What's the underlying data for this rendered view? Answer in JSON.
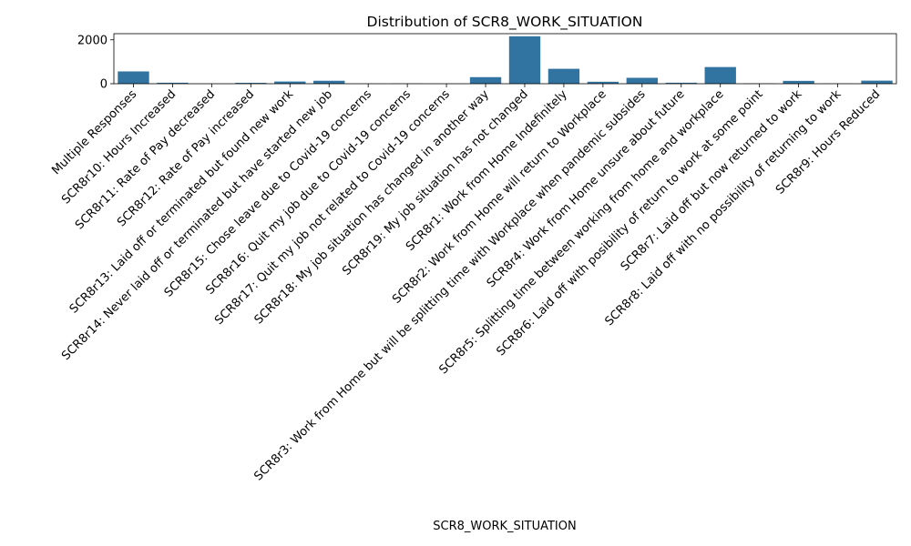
{
  "chart_data": {
    "type": "bar",
    "title": "Distribution of SCR8_WORK_SITUATION",
    "xlabel": "SCR8_WORK_SITUATION",
    "ylabel": "",
    "ylim": [
      0,
      2280
    ],
    "yticks": [
      0,
      2000
    ],
    "bar_color": "#3274a1",
    "grid": false,
    "categories": [
      "Multiple Responses",
      "SCR8r10: Hours Increased",
      "SCR8r11: Rate of Pay decreased",
      "SCR8r12: Rate of Pay increased",
      "SCR8r13: Laid off or terminated but found new work",
      "SCR8r14: Never laid off or terminated but have started new job",
      "SCR8r15: Chose leave due to Covid-19 concerns",
      "SCR8r16: Quit my job due to Covid-19 concerns",
      "SCR8r17: Quit my job not related to Covid-19 concerns",
      "SCR8r18: My job situation has changed in another way",
      "SCR8r19: My job situation has not changed",
      "SCR8r1: Work from Home Indefinitely",
      "SCR8r2: Work from Home will return to Workplace",
      "SCR8r3: Work from Home but will be splitting time with Workplace when pandemic subsides",
      "SCR8r4: Work from Home unsure about future",
      "SCR8r5: Splitting time between working from home and workplace",
      "SCR8r6: Laid off with posibility of return to work at some point",
      "SCR8r7: Laid off but now returned to work",
      "SCR8r8: Laid off with no possibility of returning to work",
      "SCR8r9: Hours Reduced"
    ],
    "values": [
      560,
      45,
      5,
      40,
      100,
      135,
      5,
      10,
      5,
      300,
      2160,
      680,
      90,
      270,
      45,
      760,
      15,
      130,
      10,
      140
    ]
  }
}
